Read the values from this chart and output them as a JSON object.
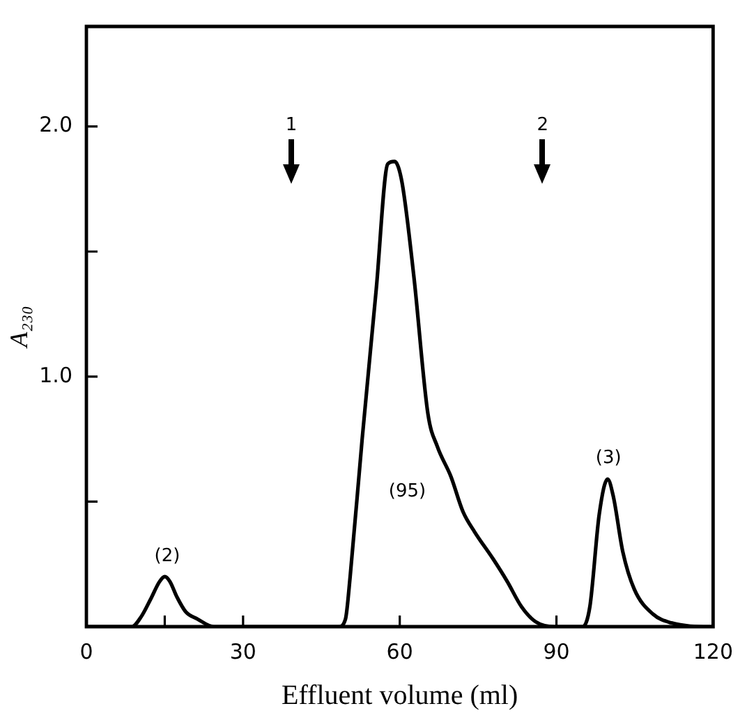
{
  "chart_data": {
    "type": "line",
    "xlabel": "Effluent volume (ml)",
    "ylabel": "A₂₃₀",
    "xlim": [
      0,
      120
    ],
    "ylim": [
      0,
      2.4
    ],
    "xticks": [
      0,
      {
        "value": 15,
        "label": null
      },
      30,
      60,
      90,
      120
    ],
    "yticks": [
      {
        "value": 0.5,
        "label": null
      },
      {
        "value": 1,
        "label": "1.0"
      },
      {
        "value": 1.5,
        "label": null
      },
      {
        "value": 2,
        "label": "2.0"
      }
    ],
    "grid": false,
    "legend": false,
    "marker": "none",
    "line_style": "solid",
    "series": [
      {
        "color": "#000000",
        "x": [
          0,
          7.8,
          8.7,
          10.5,
          12.3,
          14,
          15,
          16,
          17.3,
          19,
          21.3,
          24.4,
          48.3,
          49.6,
          50.5,
          52.8,
          55.5,
          57.7,
          59,
          60.4,
          62.7,
          65.4,
          67.2,
          69.8,
          72.1,
          74.3,
          77.9,
          80.6,
          83.3,
          86,
          89.6,
          95,
          96.4,
          98.2,
          99.8,
          100.9,
          102.7,
          104.9,
          108.5,
          112,
          119.3,
          120
        ],
        "values": [
          0,
          0,
          0,
          0.04,
          0.11,
          0.18,
          0.2,
          0.18,
          0.12,
          0.06,
          0.03,
          0,
          0,
          0.03,
          0.2,
          0.75,
          1.35,
          1.85,
          1.86,
          1.78,
          1.4,
          0.85,
          0.72,
          0.6,
          0.46,
          0.38,
          0.27,
          0.18,
          0.08,
          0.02,
          0,
          0,
          0.08,
          0.45,
          0.59,
          0.52,
          0.3,
          0.15,
          0.05,
          0.015,
          0,
          0
        ]
      }
    ],
    "annotations": [
      "1",
      "2",
      "(2)",
      "(95)",
      "(3)"
    ]
  }
}
